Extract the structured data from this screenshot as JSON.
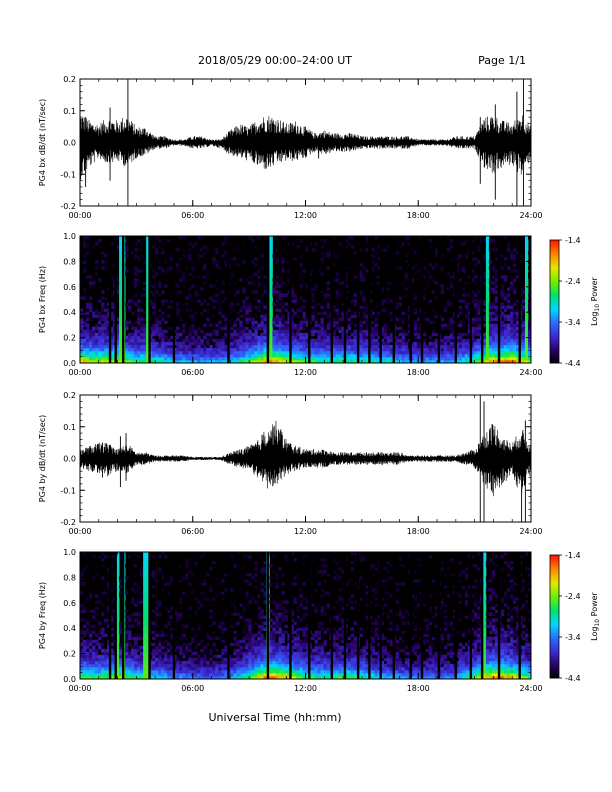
{
  "header": {
    "date_range": "2018/05/29  00:00–24:00 UT",
    "page": "Page 1/1"
  },
  "x_axis": {
    "label": "Universal Time (hh:mm)",
    "ticks": [
      "00:00",
      "06:00",
      "12:00",
      "18:00",
      "24:00"
    ]
  },
  "colorbar": {
    "ticks": [
      "-1.4",
      "-2.4",
      "-3.4",
      "-4.4"
    ],
    "label_main": "Log",
    "label_sub": "10",
    "label_tail": " Power",
    "range": [
      -4.4,
      -1.4
    ],
    "colormap": [
      "#000000",
      "#2a0066",
      "#3b2bd0",
      "#2f6bff",
      "#00d8ff",
      "#00e070",
      "#6cf000",
      "#e4e800",
      "#ff8a00",
      "#ff1a00"
    ]
  },
  "chart_data": [
    {
      "type": "line",
      "title": "",
      "ylabel": "PG4 bx dB/dt (nT/sec)",
      "xlabel": "",
      "xlim": [
        0,
        24
      ],
      "ylim": [
        -0.2,
        0.2
      ],
      "yticks": [
        "0.2",
        "0.1",
        "0.0",
        "-0.1",
        "-0.2"
      ],
      "color": "#000000",
      "series": [
        {
          "x": [
            0,
            0.5,
            1.0,
            1.5,
            2.0,
            2.5,
            3.0,
            3.5,
            4.0,
            4.5,
            5.0,
            5.5,
            6.0,
            6.5,
            7.0,
            7.5,
            8.0,
            8.5,
            9.0,
            9.5,
            10.0,
            10.5,
            11.0,
            11.5,
            12.0,
            12.5,
            13.0,
            13.5,
            14.0,
            14.5,
            15.0,
            15.5,
            16.0,
            16.5,
            17.0,
            17.5,
            18.0,
            18.5,
            19.0,
            19.5,
            20.0,
            20.5,
            21.0,
            21.5,
            22.0,
            22.5,
            23.0,
            23.5,
            24.0
          ],
          "y_max": [
            0.1,
            0.07,
            0.06,
            0.08,
            0.07,
            0.09,
            0.05,
            0.05,
            0.02,
            0.02,
            0.01,
            0.01,
            0.02,
            0.02,
            0.01,
            0.01,
            0.04,
            0.06,
            0.05,
            0.08,
            0.09,
            0.08,
            0.06,
            0.07,
            0.05,
            0.03,
            0.04,
            0.03,
            0.03,
            0.03,
            0.02,
            0.02,
            0.02,
            0.02,
            0.02,
            0.02,
            0.01,
            0.01,
            0.01,
            0.01,
            0.02,
            0.02,
            0.02,
            0.08,
            0.09,
            0.07,
            0.06,
            0.1,
            0.05
          ],
          "y_min": [
            -0.12,
            -0.08,
            -0.05,
            -0.07,
            -0.06,
            -0.08,
            -0.05,
            -0.04,
            -0.02,
            -0.02,
            -0.01,
            -0.01,
            -0.02,
            -0.02,
            -0.01,
            -0.02,
            -0.04,
            -0.05,
            -0.06,
            -0.08,
            -0.09,
            -0.07,
            -0.06,
            -0.06,
            -0.05,
            -0.03,
            -0.04,
            -0.03,
            -0.03,
            -0.03,
            -0.02,
            -0.02,
            -0.02,
            -0.02,
            -0.02,
            -0.02,
            -0.01,
            -0.01,
            -0.01,
            -0.01,
            -0.02,
            -0.02,
            -0.02,
            -0.08,
            -0.1,
            -0.08,
            -0.07,
            -0.11,
            -0.05
          ],
          "spikes": [
            [
              0.3,
              0.08,
              -0.14
            ],
            [
              1.6,
              0.11,
              -0.12
            ],
            [
              2.55,
              0.21,
              -0.21
            ],
            [
              12.7,
              0.02,
              -0.05
            ],
            [
              21.3,
              0.08,
              -0.13
            ],
            [
              22.1,
              0.12,
              -0.18
            ],
            [
              23.25,
              0.16,
              -0.2
            ],
            [
              23.6,
              0.2,
              -0.22
            ]
          ]
        }
      ]
    },
    {
      "type": "heatmap",
      "title": "",
      "ylabel": "PG4 bx Freq (Hz)",
      "xlabel": "",
      "xlim": [
        0,
        24
      ],
      "ylim": [
        0.0,
        1.0
      ],
      "yticks": [
        "1.0",
        "0.8",
        "0.6",
        "0.4",
        "0.2",
        "0.0"
      ],
      "value_label": "Log10 Power",
      "value_range": [
        -4.4,
        -1.4
      ],
      "activity_profile": {
        "x": [
          0,
          1,
          2,
          3,
          4,
          5,
          6,
          7,
          8,
          9,
          10,
          11,
          12,
          13,
          14,
          15,
          16,
          17,
          18,
          19,
          20,
          21,
          22,
          23,
          24
        ],
        "level": [
          0.75,
          0.65,
          0.7,
          0.55,
          0.5,
          0.4,
          0.35,
          0.35,
          0.4,
          0.55,
          0.8,
          0.7,
          0.55,
          0.5,
          0.55,
          0.5,
          0.45,
          0.4,
          0.35,
          0.35,
          0.4,
          0.55,
          0.8,
          0.85,
          0.6
        ]
      },
      "bright_streaks": [
        2.1,
        2.3,
        3.6,
        10.2,
        21.7,
        23.7
      ],
      "dark_gaps": [
        1.6,
        1.9,
        2.3,
        3.7,
        5.0,
        7.9,
        10.0,
        11.2,
        12.2,
        13.4,
        14.1,
        14.8,
        15.4,
        16.0,
        16.7,
        17.6,
        18.2,
        19.1,
        20.0,
        20.8,
        21.4,
        22.3,
        23.4
      ]
    },
    {
      "type": "line",
      "title": "",
      "ylabel": "PG4 by dB/dt (nT/sec)",
      "xlabel": "",
      "xlim": [
        0,
        24
      ],
      "ylim": [
        -0.2,
        0.2
      ],
      "yticks": [
        "0.2",
        "0.1",
        "0.0",
        "-0.1",
        "-0.2"
      ],
      "color": "#000000",
      "series": [
        {
          "x": [
            0,
            0.5,
            1.0,
            1.5,
            2.0,
            2.5,
            3.0,
            3.5,
            4.0,
            4.5,
            5.0,
            5.5,
            6.0,
            6.5,
            7.0,
            7.5,
            8.0,
            8.5,
            9.0,
            9.5,
            10.0,
            10.5,
            11.0,
            11.5,
            12.0,
            12.5,
            13.0,
            13.5,
            14.0,
            14.5,
            15.0,
            15.5,
            16.0,
            16.5,
            17.0,
            17.5,
            18.0,
            18.5,
            19.0,
            19.5,
            20.0,
            20.5,
            21.0,
            21.5,
            22.0,
            22.5,
            23.0,
            23.5,
            24.0
          ],
          "y_max": [
            0.03,
            0.04,
            0.05,
            0.05,
            0.03,
            0.05,
            0.02,
            0.02,
            0.01,
            0.01,
            0.01,
            0.01,
            0.005,
            0.005,
            0.005,
            0.005,
            0.02,
            0.03,
            0.04,
            0.06,
            0.11,
            0.12,
            0.06,
            0.04,
            0.03,
            0.03,
            0.03,
            0.02,
            0.02,
            0.02,
            0.02,
            0.02,
            0.02,
            0.02,
            0.02,
            0.01,
            0.01,
            0.01,
            0.01,
            0.01,
            0.01,
            0.02,
            0.03,
            0.08,
            0.12,
            0.07,
            0.05,
            0.1,
            0.04
          ],
          "y_min": [
            -0.03,
            -0.04,
            -0.05,
            -0.06,
            -0.04,
            -0.05,
            -0.02,
            -0.02,
            -0.01,
            -0.01,
            -0.01,
            -0.01,
            -0.005,
            -0.005,
            -0.005,
            -0.005,
            -0.02,
            -0.03,
            -0.04,
            -0.07,
            -0.1,
            -0.08,
            -0.05,
            -0.04,
            -0.03,
            -0.03,
            -0.03,
            -0.02,
            -0.02,
            -0.02,
            -0.02,
            -0.02,
            -0.02,
            -0.02,
            -0.02,
            -0.01,
            -0.01,
            -0.01,
            -0.01,
            -0.01,
            -0.01,
            -0.02,
            -0.03,
            -0.09,
            -0.12,
            -0.08,
            -0.06,
            -0.12,
            -0.04
          ],
          "spikes": [
            [
              1.2,
              0.05,
              -0.06
            ],
            [
              2.15,
              0.07,
              -0.09
            ],
            [
              2.45,
              0.08,
              -0.07
            ],
            [
              21.3,
              0.2,
              -0.22
            ],
            [
              21.5,
              0.18,
              -0.2
            ],
            [
              23.5,
              0.07,
              -0.2
            ],
            [
              23.7,
              0.12,
              -0.25
            ]
          ]
        }
      ]
    },
    {
      "type": "heatmap",
      "title": "",
      "ylabel": "PG4 by Freq (Hz)",
      "xlabel": "",
      "xlim": [
        0,
        24
      ],
      "ylim": [
        0.0,
        1.0
      ],
      "yticks": [
        "1.0",
        "0.8",
        "0.6",
        "0.4",
        "0.2",
        "0.0"
      ],
      "value_label": "Log10 Power",
      "value_range": [
        -4.4,
        -1.4
      ],
      "activity_profile": {
        "x": [
          0,
          1,
          2,
          3,
          4,
          5,
          6,
          7,
          8,
          9,
          10,
          11,
          12,
          13,
          14,
          15,
          16,
          17,
          18,
          19,
          20,
          21,
          22,
          23,
          24
        ],
        "level": [
          0.6,
          0.55,
          0.65,
          0.5,
          0.45,
          0.35,
          0.3,
          0.3,
          0.35,
          0.55,
          0.85,
          0.75,
          0.55,
          0.5,
          0.55,
          0.5,
          0.4,
          0.35,
          0.3,
          0.3,
          0.35,
          0.6,
          0.85,
          0.75,
          0.55
        ]
      },
      "bright_streaks": [
        2.0,
        2.3,
        3.5,
        10.0,
        21.5
      ],
      "dark_gaps": [
        1.6,
        1.9,
        2.3,
        3.7,
        5.0,
        7.9,
        10.0,
        11.2,
        12.2,
        13.4,
        14.1,
        14.8,
        15.4,
        16.0,
        16.7,
        17.6,
        18.2,
        19.1,
        20.0,
        20.8,
        21.4,
        22.3,
        23.4
      ]
    }
  ]
}
